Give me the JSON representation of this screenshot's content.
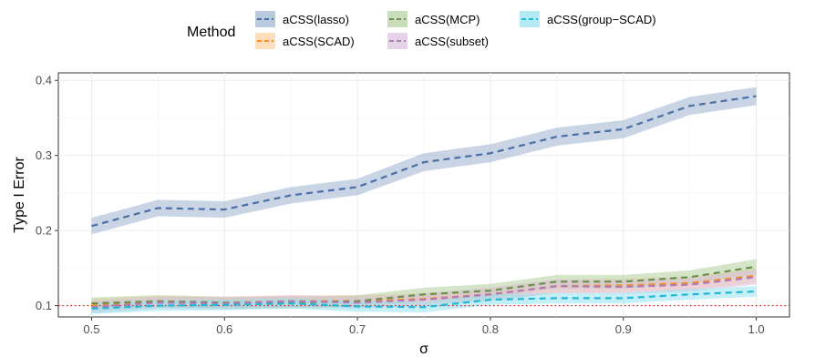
{
  "chart_data": {
    "type": "line",
    "xlabel": "σ",
    "ylabel": "Type I Error",
    "xlim": [
      0.475,
      1.025
    ],
    "ylim": [
      0.085,
      0.41
    ],
    "x_ticks": [
      0.5,
      0.6,
      0.7,
      0.8,
      0.9,
      1.0
    ],
    "x_tick_labels": [
      "0.5",
      "0.6",
      "0.7",
      "0.8",
      "0.9",
      "1.0"
    ],
    "y_ticks": [
      0.1,
      0.2,
      0.3,
      0.4
    ],
    "y_tick_labels": [
      "0.1",
      "0.2",
      "0.3",
      "0.4"
    ],
    "grid": true,
    "legend_title": "Method",
    "legend_position": "top",
    "reference_line": {
      "y": 0.1,
      "style": "dotted",
      "color": "#e41a1c"
    },
    "x": [
      0.5,
      0.55,
      0.6,
      0.65,
      0.7,
      0.75,
      0.8,
      0.85,
      0.9,
      0.95,
      1.0
    ],
    "series": [
      {
        "name": "aCSS(lasso)",
        "color": "#4a6fa5",
        "fill": "#9cb3d0",
        "values": [
          0.206,
          0.23,
          0.228,
          0.247,
          0.258,
          0.291,
          0.303,
          0.325,
          0.335,
          0.366,
          0.379
        ],
        "lower": [
          0.195,
          0.219,
          0.217,
          0.236,
          0.247,
          0.279,
          0.291,
          0.313,
          0.323,
          0.354,
          0.367
        ],
        "upper": [
          0.217,
          0.241,
          0.239,
          0.258,
          0.269,
          0.303,
          0.315,
          0.337,
          0.347,
          0.378,
          0.391
        ]
      },
      {
        "name": "aCSS(SCAD)",
        "color": "#f28e2b",
        "fill": "#fbcf9f",
        "values": [
          0.101,
          0.105,
          0.104,
          0.106,
          0.106,
          0.109,
          0.115,
          0.126,
          0.127,
          0.13,
          0.14
        ],
        "lower": [
          0.093,
          0.097,
          0.096,
          0.098,
          0.098,
          0.101,
          0.106,
          0.117,
          0.118,
          0.121,
          0.13
        ],
        "upper": [
          0.109,
          0.113,
          0.112,
          0.114,
          0.114,
          0.117,
          0.124,
          0.135,
          0.136,
          0.139,
          0.15
        ]
      },
      {
        "name": "aCSS(MCP)",
        "color": "#6a8f4e",
        "fill": "#b3cf9c",
        "values": [
          0.103,
          0.106,
          0.104,
          0.104,
          0.106,
          0.115,
          0.12,
          0.132,
          0.132,
          0.138,
          0.152
        ],
        "lower": [
          0.095,
          0.098,
          0.096,
          0.096,
          0.098,
          0.106,
          0.111,
          0.123,
          0.123,
          0.129,
          0.142
        ],
        "upper": [
          0.111,
          0.114,
          0.112,
          0.112,
          0.114,
          0.124,
          0.129,
          0.141,
          0.141,
          0.147,
          0.162
        ]
      },
      {
        "name": "aCSS(subset)",
        "color": "#b07ab8",
        "fill": "#dcbfe0",
        "values": [
          0.098,
          0.104,
          0.103,
          0.106,
          0.104,
          0.108,
          0.115,
          0.126,
          0.125,
          0.128,
          0.138
        ],
        "lower": [
          0.09,
          0.096,
          0.095,
          0.098,
          0.096,
          0.1,
          0.106,
          0.117,
          0.116,
          0.119,
          0.128
        ],
        "upper": [
          0.106,
          0.112,
          0.111,
          0.114,
          0.112,
          0.116,
          0.124,
          0.135,
          0.134,
          0.137,
          0.148
        ]
      },
      {
        "name": "aCSS(group−SCAD)",
        "color": "#26b5d4",
        "fill": "#93e1ee",
        "values": [
          0.096,
          0.1,
          0.101,
          0.103,
          0.099,
          0.098,
          0.108,
          0.11,
          0.11,
          0.115,
          0.119
        ],
        "lower": [
          0.089,
          0.093,
          0.094,
          0.096,
          0.092,
          0.091,
          0.101,
          0.103,
          0.103,
          0.108,
          0.112
        ],
        "upper": [
          0.103,
          0.107,
          0.108,
          0.11,
          0.106,
          0.105,
          0.115,
          0.117,
          0.117,
          0.122,
          0.126
        ]
      }
    ]
  }
}
